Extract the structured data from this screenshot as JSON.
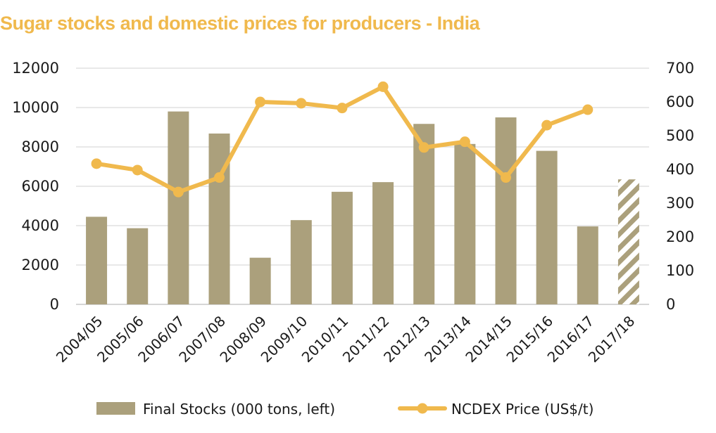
{
  "chart_data": {
    "type": "bar",
    "title": "Sugar stocks and domestic prices for producers - India",
    "categories": [
      "2004/05",
      "2005/06",
      "2006/07",
      "2007/08",
      "2008/09",
      "2009/10",
      "2010/11",
      "2011/12",
      "2012/13",
      "2013/14",
      "2014/15",
      "2015/16",
      "2016/17",
      "2017/18"
    ],
    "series": [
      {
        "name": "Final Stocks (000 tons, left)",
        "type": "bar",
        "axis": "left",
        "color": "#ABA07C",
        "values": [
          4450,
          3870,
          9800,
          8680,
          2370,
          4280,
          5720,
          6210,
          9170,
          8150,
          9500,
          7800,
          3960,
          6350
        ],
        "hatched_categories": [
          "2017/18"
        ]
      },
      {
        "name": "NCDEX Price (US$/t)",
        "type": "line",
        "axis": "right",
        "color": "#F0B94D",
        "values": [
          417,
          398,
          333,
          376,
          600,
          596,
          582,
          645,
          465,
          482,
          376,
          531,
          577,
          null
        ]
      }
    ],
    "y_left": {
      "min": 0,
      "max": 12000,
      "ticks": [
        0,
        2000,
        4000,
        6000,
        8000,
        10000,
        12000
      ]
    },
    "y_right": {
      "min": 0,
      "max": 700,
      "ticks": [
        0,
        100,
        200,
        300,
        400,
        500,
        600,
        700
      ]
    },
    "grid": true,
    "legend": "bottom"
  }
}
